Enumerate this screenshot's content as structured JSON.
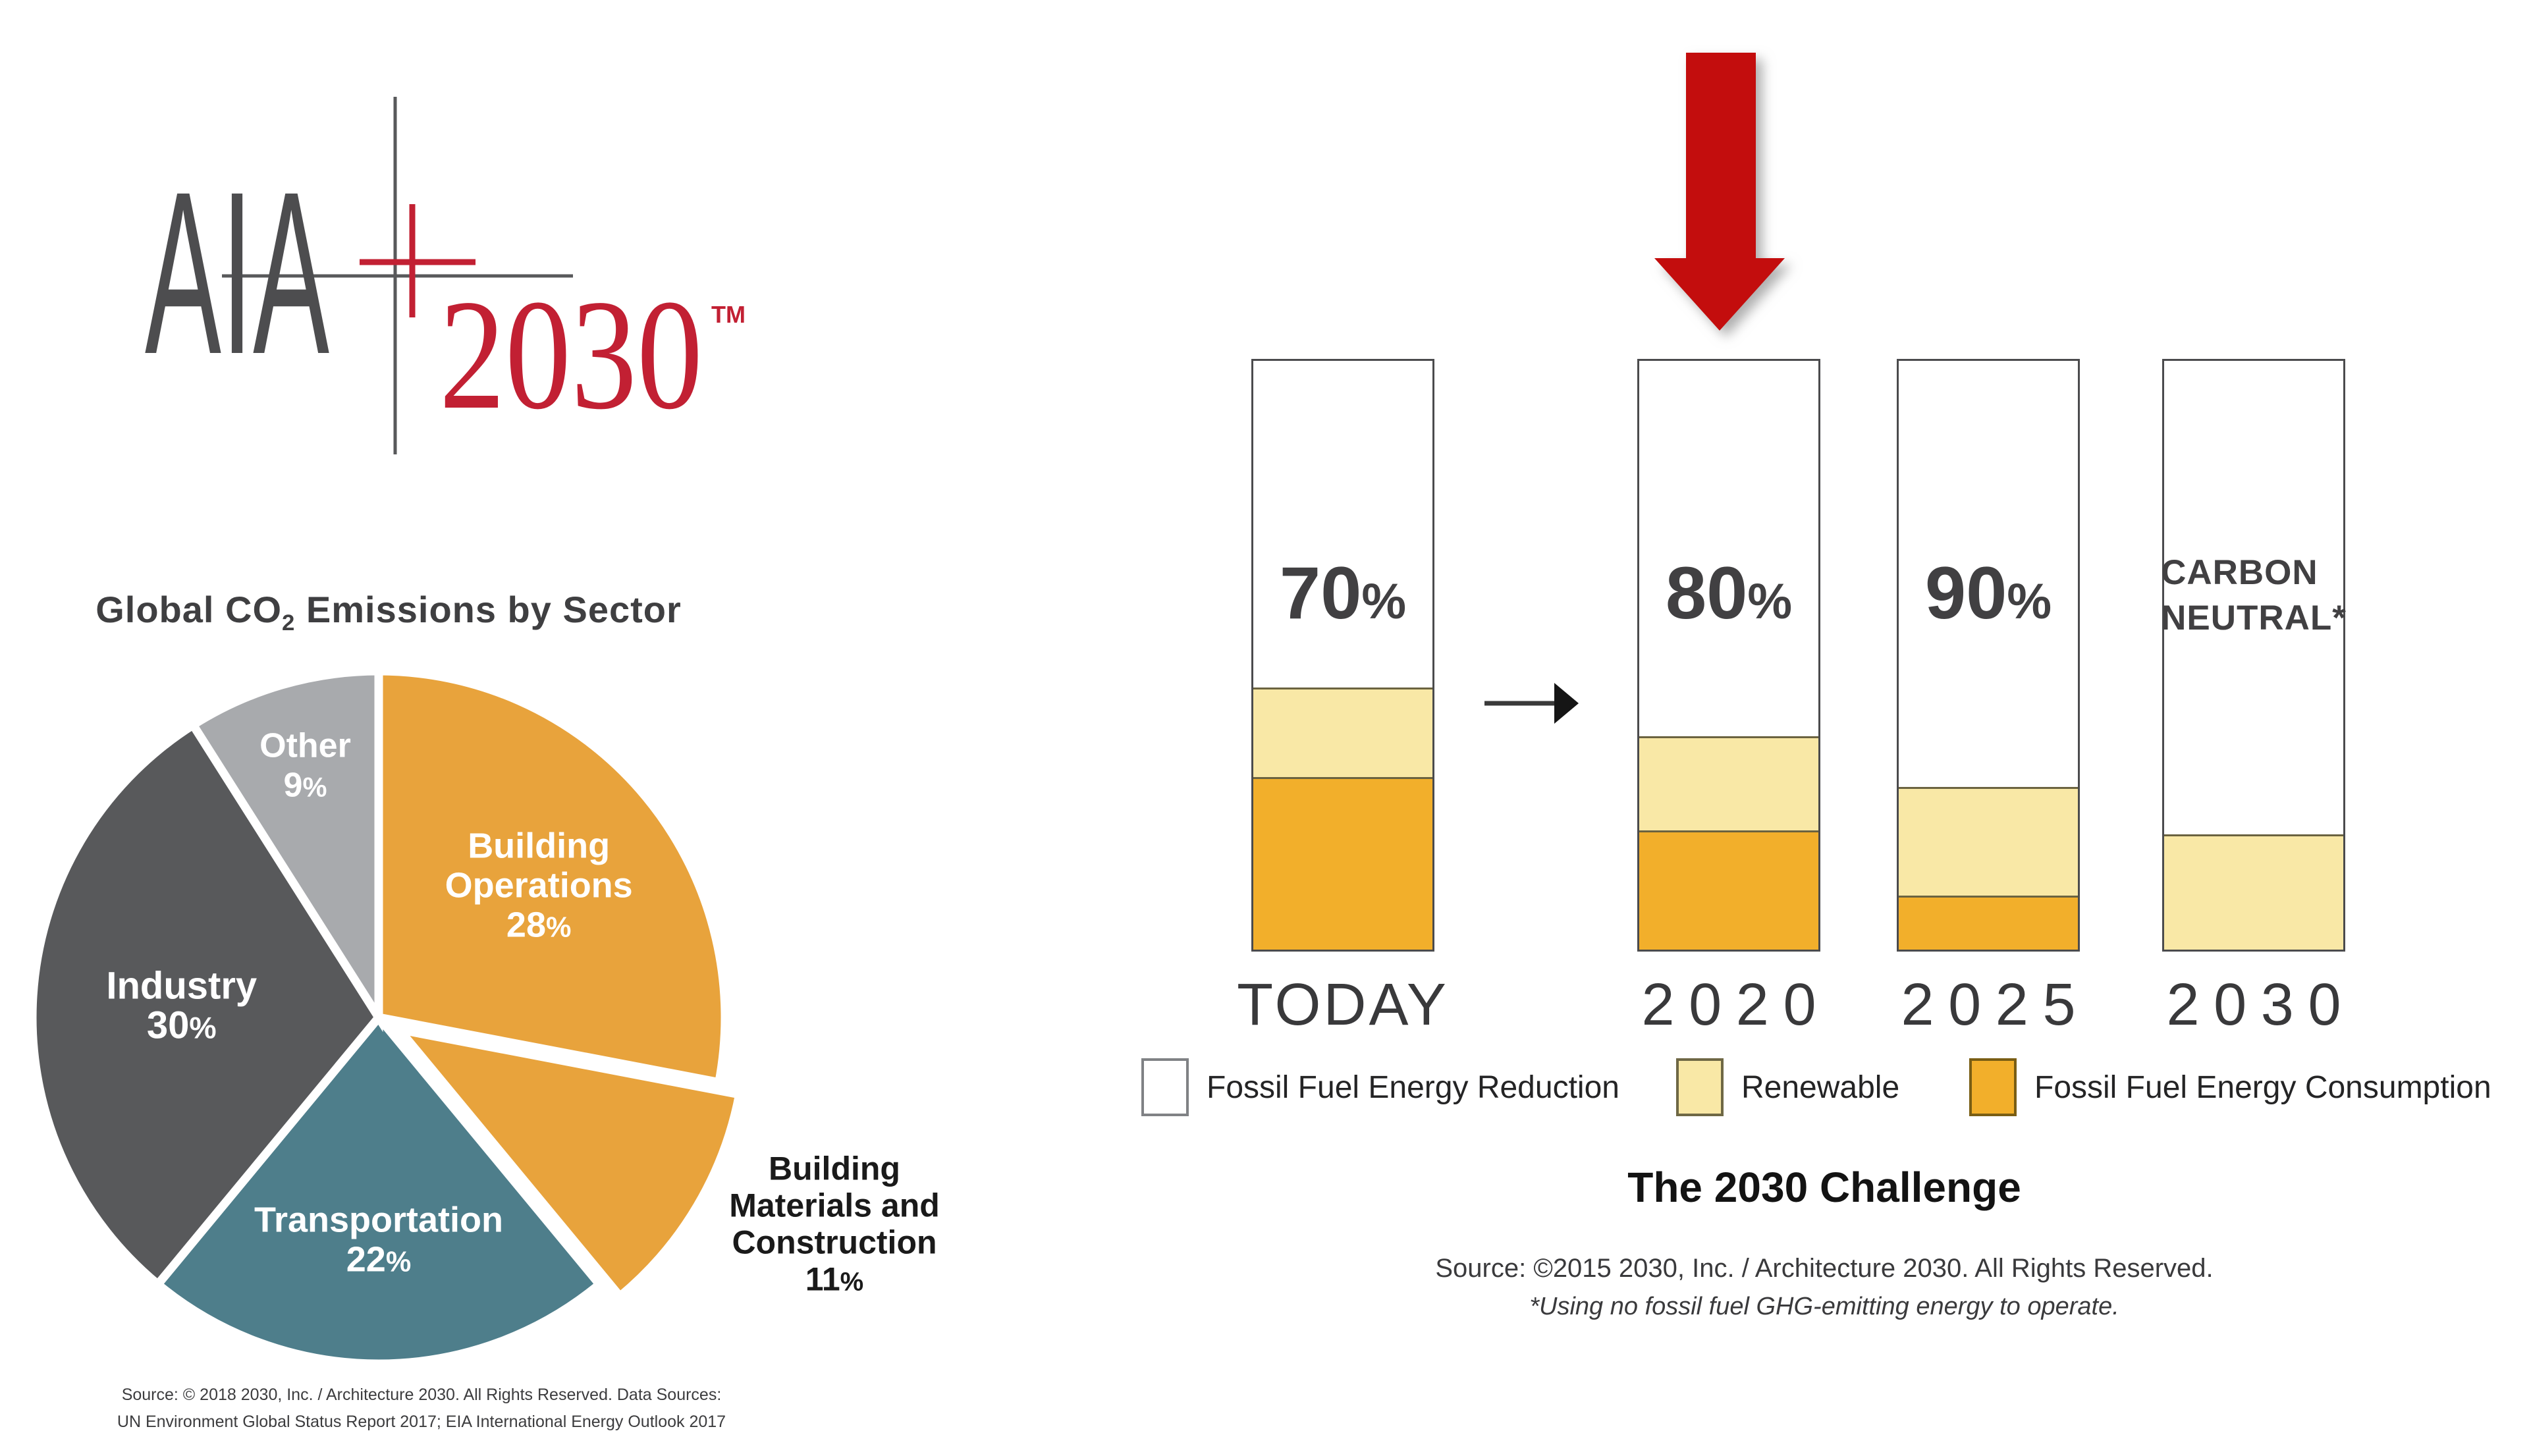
{
  "logo": {
    "aia": "AIA",
    "year": "2030",
    "tm": "TM",
    "red": "#C22033",
    "gray": "#58595B",
    "text_gray": "#4D4D4F"
  },
  "pie_section": {
    "title_prefix": "Global CO",
    "title_sub": "2",
    "title_suffix": " Emissions by Sector",
    "source_line1": "Source: © 2018 2030, Inc. / Architecture 2030. All Rights Reserved. Data Sources:",
    "source_line2": "UN Environment Global Status Report 2017; EIA International Energy Outlook 2017"
  },
  "bar_section": {
    "title": "The 2030 Challenge",
    "source_line1": "Source: ©2015 2030, Inc. / Architecture 2030. All Rights Reserved.",
    "source_line2": "*Using no fossil fuel GHG-emitting energy to operate.",
    "legend": [
      {
        "label": "Fossil Fuel Energy Reduction",
        "color": "#FFFFFF",
        "border": "#808285"
      },
      {
        "label": "Renewable",
        "color": "#F9E8A6",
        "border": "#6F6845"
      },
      {
        "label": "Fossil Fuel Energy Consumption",
        "color": "#F2AF2B",
        "border": "#7A5E14"
      }
    ]
  },
  "chart_data": [
    {
      "type": "pie",
      "title": "Global CO2 Emissions by Sector",
      "start_angle_deg": 0,
      "direction": "clockwise",
      "legend_position": "none",
      "slices": [
        {
          "label": "Building Operations",
          "value": 28,
          "color": "#E8A33C",
          "label_lines": [
            "Building",
            "Operations",
            "28%"
          ],
          "label_color": "#FFFFFF",
          "label_r": 0.6,
          "label_size": 54
        },
        {
          "label": "Building Materials and Construction",
          "value": 11,
          "color": "#E8A33C",
          "exploded": true,
          "label_outside": true,
          "label_lines": [
            "Building",
            "Materials and",
            "Construction",
            "11%"
          ],
          "label_color": "#1A1A1A",
          "label_at": [
            1247,
            858
          ],
          "label_size": 50,
          "label_lh": 56
        },
        {
          "label": "Transportation",
          "value": 22,
          "color": "#4E7E8B",
          "label_lines": [
            "Transportation",
            "22%"
          ],
          "label_color": "#FFFFFF",
          "label_r": 0.64,
          "label_size": 54
        },
        {
          "label": "Industry",
          "value": 30,
          "color": "#58595B",
          "label_lines": [
            "Industry",
            "30%"
          ],
          "label_color": "#FFFFFF",
          "label_r": 0.57,
          "label_size": 58
        },
        {
          "label": "Other",
          "value": 9,
          "color": "#A8AAAD",
          "label_lines": [
            "Other",
            "9%"
          ],
          "label_color": "#FFFFFF",
          "label_r": 0.76,
          "label_size": 52
        }
      ]
    },
    {
      "type": "stacked-bar",
      "categories": [
        "TODAY",
        "2020",
        "2025",
        "2030"
      ],
      "series": [
        {
          "name": "Fossil Fuel Energy Consumption",
          "color": "#F2AF2B",
          "values": [
            29.3,
            20.2,
            9.2,
            0
          ]
        },
        {
          "name": "Renewable",
          "color": "#F9E8A6",
          "values": [
            15.2,
            16.0,
            18.4,
            19.6
          ]
        },
        {
          "name": "Fossil Fuel Energy Reduction",
          "color": "#FFFFFF",
          "values": [
            55.5,
            63.8,
            72.4,
            80.4
          ]
        }
      ],
      "bar_labels": [
        [
          "70%"
        ],
        [
          "80%"
        ],
        [
          "90%"
        ],
        [
          "CARBON",
          "NEUTRAL*"
        ]
      ],
      "ylim": [
        0,
        100
      ],
      "grid": false,
      "legend_position": "bottom"
    }
  ]
}
